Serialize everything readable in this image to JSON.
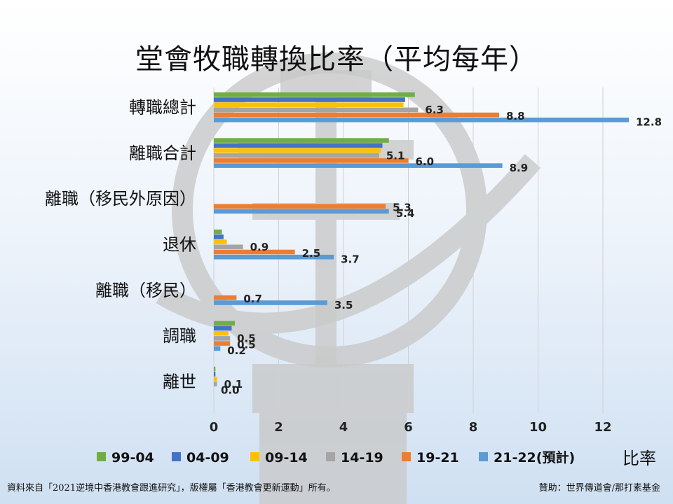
{
  "title": "堂會牧職轉換比率（平均每年）",
  "unit_label": "比率",
  "footer": {
    "source": "資料來自「2021逆境中香港教會跟進研究」，版權屬「香港教會更新運動」所有。",
    "sponsor": "贊助：世界傳道會/那打素基金"
  },
  "colors": {
    "99-04": "#70ad47",
    "04-09": "#4472c4",
    "09-14": "#ffc000",
    "14-19": "#a5a5a5",
    "19-21": "#ed7d31",
    "21-22(預計)": "#5b9bd5"
  },
  "chart_data": {
    "type": "bar",
    "orientation": "horizontal",
    "categories": [
      "轉職總計",
      "離職合計",
      "離職（移民外原因）",
      "退休",
      "離職（移民）",
      "調職",
      "離世"
    ],
    "series": [
      {
        "name": "99-04",
        "values": [
          6.2,
          5.4,
          null,
          0.25,
          null,
          0.65,
          0.05
        ]
      },
      {
        "name": "04-09",
        "values": [
          5.9,
          5.2,
          null,
          0.3,
          null,
          0.55,
          0.05
        ]
      },
      {
        "name": "09-14",
        "values": [
          5.85,
          5.15,
          null,
          0.4,
          null,
          0.45,
          0.1
        ]
      },
      {
        "name": "14-19",
        "values": [
          6.3,
          5.1,
          null,
          0.9,
          null,
          0.5,
          0.1
        ]
      },
      {
        "name": "19-21",
        "values": [
          8.8,
          6.0,
          5.3,
          2.5,
          0.7,
          0.5,
          0.0
        ]
      },
      {
        "name": "21-22(預計)",
        "values": [
          12.8,
          8.9,
          5.4,
          3.7,
          3.5,
          0.2,
          0.0
        ]
      }
    ],
    "data_labels": [
      {
        "category": "轉職總計",
        "series": "14-19",
        "text": "6.3"
      },
      {
        "category": "轉職總計",
        "series": "19-21",
        "text": "8.8"
      },
      {
        "category": "轉職總計",
        "series": "21-22(預計)",
        "text": "12.8"
      },
      {
        "category": "離職合計",
        "series": "14-19",
        "text": "5.1"
      },
      {
        "category": "離職合計",
        "series": "19-21",
        "text": "6.0"
      },
      {
        "category": "離職合計",
        "series": "21-22(預計)",
        "text": "8.9"
      },
      {
        "category": "離職（移民外原因）",
        "series": "19-21",
        "text": "5.3"
      },
      {
        "category": "離職（移民外原因）",
        "series": "21-22(預計)",
        "text": "5.4"
      },
      {
        "category": "退休",
        "series": "14-19",
        "text": "0.9"
      },
      {
        "category": "退休",
        "series": "19-21",
        "text": "2.5"
      },
      {
        "category": "退休",
        "series": "21-22(預計)",
        "text": "3.7"
      },
      {
        "category": "離職（移民）",
        "series": "19-21",
        "text": "0.7"
      },
      {
        "category": "離職（移民）",
        "series": "21-22(預計)",
        "text": "3.5"
      },
      {
        "category": "調職",
        "series": "14-19",
        "text": "0.5"
      },
      {
        "category": "調職",
        "series": "19-21",
        "text": "0.5"
      },
      {
        "category": "調職",
        "series": "21-22(預計)",
        "text": "0.2"
      },
      {
        "category": "離世",
        "series": "14-19",
        "text": "0.1"
      },
      {
        "category": "離世",
        "series": "19-21",
        "text": "0.0"
      }
    ],
    "xlim": [
      0,
      14
    ],
    "xticks": [
      0,
      2,
      4,
      6,
      8,
      10,
      12
    ],
    "grid": true,
    "legend_position": "bottom"
  }
}
